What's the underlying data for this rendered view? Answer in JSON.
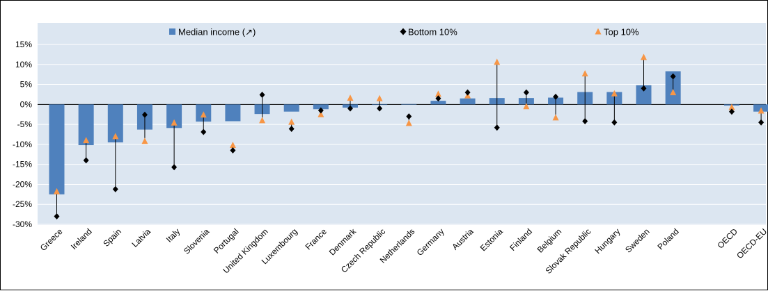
{
  "chart_data": {
    "type": "bar",
    "title": "",
    "xlabel": "",
    "ylabel": "",
    "ylim": [
      -30,
      15
    ],
    "yticks": [
      15,
      10,
      5,
      0,
      -5,
      -10,
      -15,
      -20,
      -25,
      -30
    ],
    "ytick_labels": [
      "15%",
      "10%",
      "5%",
      "0%",
      "-5%",
      "-10%",
      "-15%",
      "-20%",
      "-25%",
      "-30%"
    ],
    "grid": true,
    "legend_position": "top",
    "categories": [
      "Greece",
      "Ireland",
      "Spain",
      "Latvia",
      "Italy",
      "Slovenia",
      "Portugal",
      "United Kingdom",
      "Luxembourg",
      "France",
      "Denmark",
      "Czech Republic",
      "Netherlands",
      "Germany",
      "Austria",
      "Estonia",
      "Finland",
      "Belgium",
      "Slovak Republic",
      "Hungary",
      "Sweden",
      "Poland",
      "",
      "OECD",
      "OECD-EU"
    ],
    "series": [
      {
        "name": "Median income (↗)",
        "kind": "bar",
        "color": "#4f81bd",
        "values": [
          -22.5,
          -10.2,
          -9.5,
          -6.3,
          -5.9,
          -4.3,
          -4.2,
          -2.4,
          -1.8,
          -1.2,
          -0.8,
          0,
          0.1,
          0.9,
          1.5,
          1.6,
          1.6,
          1.7,
          3.1,
          3.1,
          4.8,
          8.3,
          null,
          -0.3,
          -1.8
        ]
      },
      {
        "name": "Bottom 10%",
        "kind": "marker",
        "marker": "diamond",
        "color": "#000000",
        "values": [
          -28,
          -14,
          -21.2,
          -2.6,
          -15.7,
          -6.9,
          -11.5,
          2.4,
          -6.1,
          -1.5,
          -1,
          -1,
          -3,
          1.5,
          3,
          -5.8,
          3,
          1.9,
          -4.2,
          -4.5,
          4,
          7,
          null,
          -1.8,
          -4.5
        ]
      },
      {
        "name": "Top 10%",
        "kind": "marker",
        "marker": "triangle",
        "color": "#f79646",
        "values": [
          -21.8,
          -9,
          -8,
          -9.2,
          -4.6,
          -2.6,
          -10.2,
          -4,
          -4.4,
          -2.5,
          1.6,
          1.5,
          -4.7,
          2.6,
          2.2,
          10.6,
          -0.5,
          -3.3,
          7.7,
          2.7,
          11.8,
          3,
          null,
          -0.7,
          -1.6
        ]
      }
    ]
  }
}
